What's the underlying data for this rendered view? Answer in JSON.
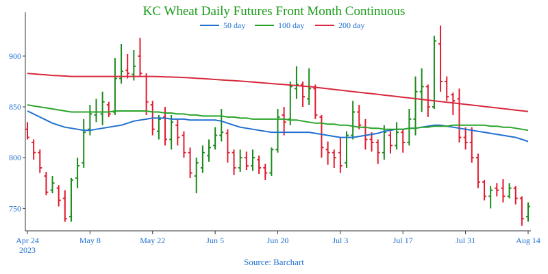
{
  "chart_data": {
    "type": "ohlc",
    "title": "KC Wheat Daily Futures Front Month Continuous",
    "source": "Source: Barchart",
    "x_tick_labels": [
      "Apr 24",
      "May 8",
      "May 22",
      "Jun 5",
      "Jun 20",
      "Jul 3",
      "Jul 17",
      "Jul 31",
      "Aug 14"
    ],
    "x_tick_year": "2023",
    "y_ticks": [
      750,
      800,
      850,
      900
    ],
    "ylim": [
      728,
      935
    ],
    "grid": false,
    "legend_position": "top-center",
    "colors": {
      "title": "#1a9b1a",
      "axis_text": "#1f6fd0",
      "up": "#1a8a1a",
      "down": "#e01b2e",
      "ma50": "#1f6fd0",
      "ma100": "#28a428",
      "ma200": "#d8283c"
    },
    "moving_averages": [
      {
        "name": "50 day",
        "color": "#1f6fd0",
        "values": [
          846,
          843,
          840,
          837,
          834,
          832,
          830,
          829,
          828,
          827,
          827,
          828,
          829,
          830,
          831,
          832,
          834,
          836,
          837,
          838,
          839,
          839,
          839,
          838,
          838,
          838,
          837,
          837,
          837,
          837,
          837,
          836,
          834,
          832,
          830,
          829,
          828,
          827,
          826,
          825,
          825,
          825,
          825,
          825,
          825,
          825,
          824,
          823,
          822,
          821,
          820,
          820,
          820,
          821,
          822,
          823,
          824,
          826,
          827,
          828,
          828,
          829,
          829,
          830,
          831,
          832,
          832,
          831,
          830,
          829,
          828,
          827,
          826,
          825,
          824,
          823,
          822,
          821,
          820,
          818,
          816
        ]
      },
      {
        "name": "100 day",
        "color": "#28a428",
        "values": [
          852,
          851,
          850,
          849,
          848,
          847,
          846,
          845,
          845,
          845,
          845,
          845,
          845,
          845,
          846,
          846,
          846,
          846,
          846,
          846,
          845,
          845,
          844,
          844,
          843,
          843,
          842,
          842,
          841,
          841,
          841,
          841,
          840,
          840,
          839,
          839,
          838,
          838,
          838,
          838,
          838,
          838,
          837,
          837,
          836,
          835,
          834,
          834,
          833,
          833,
          832,
          832,
          831,
          830,
          830,
          829,
          829,
          828,
          828,
          828,
          828,
          829,
          829,
          830,
          830,
          831,
          831,
          831,
          832,
          832,
          832,
          832,
          832,
          832,
          831,
          831,
          830,
          830,
          829,
          828,
          827
        ]
      },
      {
        "name": "200 day",
        "color": "#d8283c",
        "values": [
          883,
          882.5,
          882,
          881.5,
          881,
          880.7,
          880.4,
          880,
          880,
          880,
          880,
          880,
          880,
          880,
          880,
          880,
          880,
          880,
          880,
          880,
          880,
          879.8,
          879.6,
          879.4,
          879.2,
          879,
          878.6,
          878.2,
          877.8,
          877.4,
          877,
          876.6,
          876.2,
          875.8,
          875.4,
          875,
          874.5,
          874,
          873.5,
          873,
          872.5,
          872,
          871.5,
          871,
          870.5,
          870,
          869.3,
          868.6,
          867.9,
          867.2,
          866.5,
          865.8,
          865.1,
          864.4,
          863.7,
          863,
          862.3,
          861.6,
          860.9,
          860.2,
          859.5,
          858.8,
          858.1,
          857.4,
          856.7,
          856,
          855.3,
          854.6,
          853.9,
          853.2,
          852.5,
          851.8,
          851.1,
          850.4,
          849.7,
          849,
          848.3,
          847.6,
          846.9,
          846.2,
          845.5
        ]
      }
    ],
    "bars": [
      {
        "o": 828,
        "h": 835,
        "l": 818,
        "c": 820
      },
      {
        "o": 815,
        "h": 818,
        "l": 798,
        "c": 805
      },
      {
        "o": 805,
        "h": 808,
        "l": 785,
        "c": 790
      },
      {
        "o": 782,
        "h": 786,
        "l": 763,
        "c": 766
      },
      {
        "o": 768,
        "h": 782,
        "l": 765,
        "c": 775
      },
      {
        "o": 770,
        "h": 773,
        "l": 752,
        "c": 758
      },
      {
        "o": 760,
        "h": 768,
        "l": 737,
        "c": 740
      },
      {
        "o": 742,
        "h": 780,
        "l": 737,
        "c": 778
      },
      {
        "o": 780,
        "h": 800,
        "l": 770,
        "c": 792
      },
      {
        "o": 795,
        "h": 838,
        "l": 790,
        "c": 825
      },
      {
        "o": 828,
        "h": 852,
        "l": 822,
        "c": 843
      },
      {
        "o": 842,
        "h": 858,
        "l": 835,
        "c": 845
      },
      {
        "o": 843,
        "h": 865,
        "l": 832,
        "c": 855
      },
      {
        "o": 852,
        "h": 855,
        "l": 840,
        "c": 843
      },
      {
        "o": 845,
        "h": 898,
        "l": 842,
        "c": 878
      },
      {
        "o": 878,
        "h": 912,
        "l": 873,
        "c": 885
      },
      {
        "o": 886,
        "h": 902,
        "l": 878,
        "c": 883
      },
      {
        "o": 882,
        "h": 906,
        "l": 876,
        "c": 890
      },
      {
        "o": 900,
        "h": 918,
        "l": 880,
        "c": 883
      },
      {
        "o": 880,
        "h": 883,
        "l": 842,
        "c": 855
      },
      {
        "o": 852,
        "h": 856,
        "l": 822,
        "c": 828
      },
      {
        "o": 826,
        "h": 842,
        "l": 818,
        "c": 838
      },
      {
        "o": 840,
        "h": 850,
        "l": 812,
        "c": 818
      },
      {
        "o": 818,
        "h": 842,
        "l": 808,
        "c": 835
      },
      {
        "o": 832,
        "h": 838,
        "l": 812,
        "c": 820
      },
      {
        "o": 822,
        "h": 826,
        "l": 800,
        "c": 805
      },
      {
        "o": 805,
        "h": 810,
        "l": 780,
        "c": 785
      },
      {
        "o": 782,
        "h": 800,
        "l": 765,
        "c": 795
      },
      {
        "o": 790,
        "h": 812,
        "l": 785,
        "c": 805
      },
      {
        "o": 802,
        "h": 818,
        "l": 796,
        "c": 810
      },
      {
        "o": 812,
        "h": 830,
        "l": 808,
        "c": 822
      },
      {
        "o": 822,
        "h": 848,
        "l": 816,
        "c": 825
      },
      {
        "o": 824,
        "h": 828,
        "l": 795,
        "c": 805
      },
      {
        "o": 805,
        "h": 808,
        "l": 783,
        "c": 790
      },
      {
        "o": 790,
        "h": 808,
        "l": 786,
        "c": 800
      },
      {
        "o": 800,
        "h": 806,
        "l": 788,
        "c": 792
      },
      {
        "o": 792,
        "h": 808,
        "l": 787,
        "c": 800
      },
      {
        "o": 798,
        "h": 802,
        "l": 784,
        "c": 790
      },
      {
        "o": 790,
        "h": 794,
        "l": 778,
        "c": 785
      },
      {
        "o": 785,
        "h": 810,
        "l": 782,
        "c": 808
      },
      {
        "o": 808,
        "h": 848,
        "l": 805,
        "c": 840
      },
      {
        "o": 842,
        "h": 850,
        "l": 822,
        "c": 835
      },
      {
        "o": 838,
        "h": 875,
        "l": 832,
        "c": 870
      },
      {
        "o": 868,
        "h": 890,
        "l": 858,
        "c": 872
      },
      {
        "o": 872,
        "h": 875,
        "l": 850,
        "c": 860
      },
      {
        "o": 858,
        "h": 888,
        "l": 852,
        "c": 868
      },
      {
        "o": 868,
        "h": 872,
        "l": 838,
        "c": 842
      },
      {
        "o": 840,
        "h": 842,
        "l": 800,
        "c": 810
      },
      {
        "o": 808,
        "h": 816,
        "l": 793,
        "c": 805
      },
      {
        "o": 805,
        "h": 808,
        "l": 790,
        "c": 800
      },
      {
        "o": 805,
        "h": 820,
        "l": 785,
        "c": 792
      },
      {
        "o": 795,
        "h": 826,
        "l": 790,
        "c": 822
      },
      {
        "o": 822,
        "h": 856,
        "l": 818,
        "c": 845
      },
      {
        "o": 845,
        "h": 852,
        "l": 828,
        "c": 832
      },
      {
        "o": 830,
        "h": 838,
        "l": 808,
        "c": 818
      },
      {
        "o": 818,
        "h": 825,
        "l": 806,
        "c": 815
      },
      {
        "o": 815,
        "h": 818,
        "l": 794,
        "c": 805
      },
      {
        "o": 805,
        "h": 832,
        "l": 798,
        "c": 825
      },
      {
        "o": 822,
        "h": 826,
        "l": 804,
        "c": 812
      },
      {
        "o": 812,
        "h": 835,
        "l": 808,
        "c": 825
      },
      {
        "o": 825,
        "h": 828,
        "l": 805,
        "c": 815
      },
      {
        "o": 815,
        "h": 848,
        "l": 812,
        "c": 838
      },
      {
        "o": 838,
        "h": 880,
        "l": 822,
        "c": 865
      },
      {
        "o": 865,
        "h": 888,
        "l": 845,
        "c": 870
      },
      {
        "o": 870,
        "h": 872,
        "l": 840,
        "c": 850
      },
      {
        "o": 850,
        "h": 920,
        "l": 848,
        "c": 915
      },
      {
        "o": 912,
        "h": 930,
        "l": 865,
        "c": 875
      },
      {
        "o": 875,
        "h": 880,
        "l": 856,
        "c": 860
      },
      {
        "o": 862,
        "h": 864,
        "l": 842,
        "c": 856
      },
      {
        "o": 858,
        "h": 868,
        "l": 815,
        "c": 820
      },
      {
        "o": 820,
        "h": 830,
        "l": 808,
        "c": 815
      },
      {
        "o": 815,
        "h": 830,
        "l": 795,
        "c": 800
      },
      {
        "o": 800,
        "h": 804,
        "l": 770,
        "c": 776
      },
      {
        "o": 776,
        "h": 778,
        "l": 758,
        "c": 762
      },
      {
        "o": 762,
        "h": 772,
        "l": 750,
        "c": 768
      },
      {
        "o": 770,
        "h": 775,
        "l": 762,
        "c": 768
      },
      {
        "o": 770,
        "h": 779,
        "l": 756,
        "c": 762
      },
      {
        "o": 762,
        "h": 775,
        "l": 760,
        "c": 770
      },
      {
        "o": 770,
        "h": 772,
        "l": 754,
        "c": 760
      },
      {
        "o": 760,
        "h": 762,
        "l": 733,
        "c": 740
      },
      {
        "o": 742,
        "h": 756,
        "l": 737,
        "c": 752
      }
    ]
  },
  "bars_extra_note": ""
}
